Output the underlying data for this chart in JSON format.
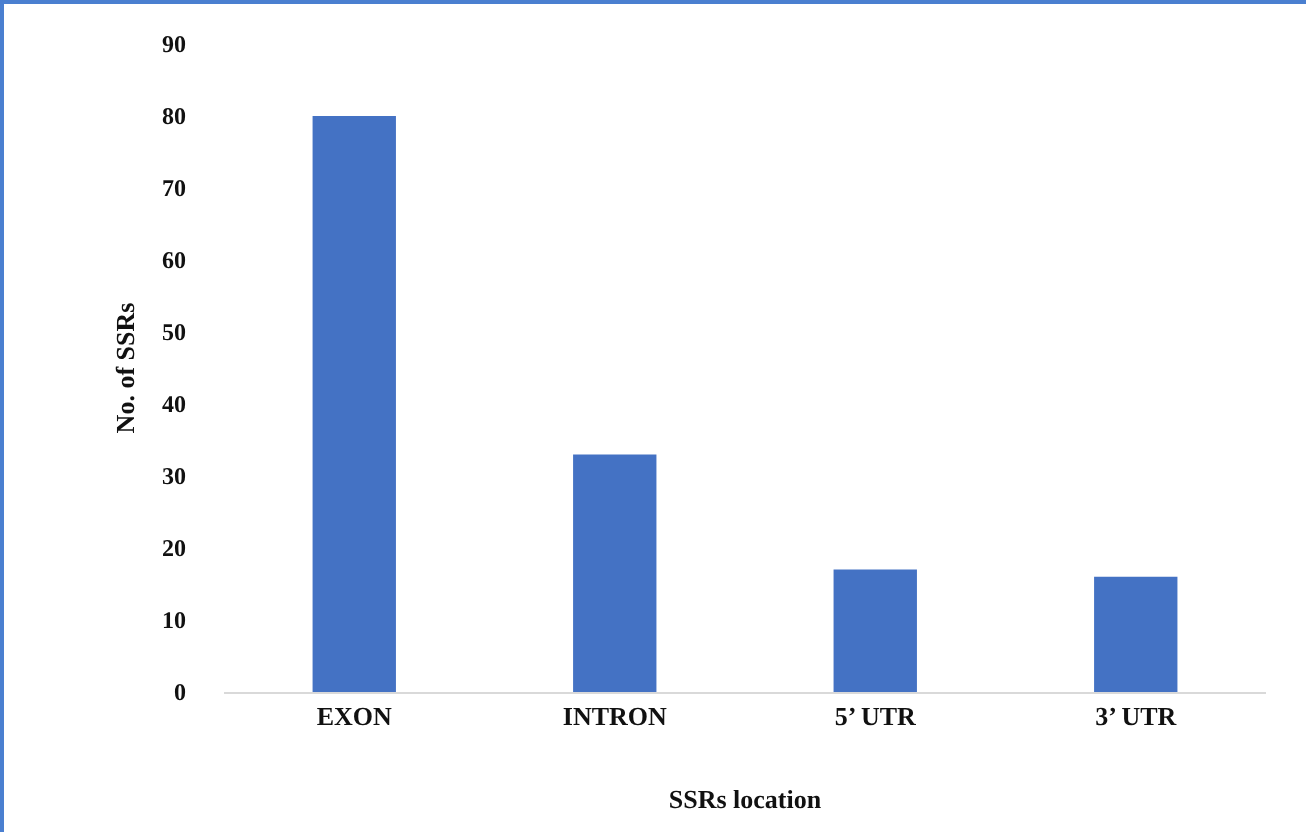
{
  "chart_data": {
    "type": "bar",
    "xlabel": "SSRs location",
    "ylabel": "No. of SSRs",
    "categories": [
      "EXON",
      "INTRON",
      "5’ UTR",
      "3’ UTR"
    ],
    "values": [
      80,
      33,
      17,
      16
    ],
    "color": "#4472c4",
    "ylim": [
      0,
      90
    ],
    "yticks": [
      0,
      10,
      20,
      30,
      40,
      50,
      60,
      70,
      80,
      90
    ],
    "grid": false
  }
}
